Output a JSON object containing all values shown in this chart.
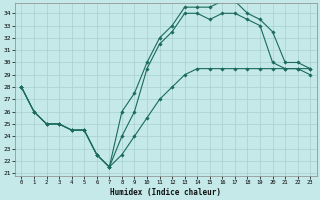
{
  "xlabel": "Humidex (Indice chaleur)",
  "bg_color": "#c5e8e8",
  "grid_color": "#a8d0d0",
  "line_color": "#1a6b5a",
  "xlim": [
    -0.5,
    23.5
  ],
  "ylim": [
    20.8,
    34.8
  ],
  "xticks": [
    0,
    1,
    2,
    3,
    4,
    5,
    6,
    7,
    8,
    9,
    10,
    11,
    12,
    13,
    14,
    15,
    16,
    17,
    18,
    19,
    20,
    21,
    22,
    23
  ],
  "yticks": [
    21,
    22,
    23,
    24,
    25,
    26,
    27,
    28,
    29,
    30,
    31,
    32,
    33,
    34
  ],
  "line1_x": [
    0,
    1,
    2,
    3,
    4,
    5,
    6,
    7,
    8,
    9,
    10,
    11,
    12,
    13,
    14,
    15,
    16,
    17,
    18,
    19,
    20,
    21,
    22,
    23
  ],
  "line1_y": [
    28.0,
    26.0,
    25.0,
    25.0,
    24.5,
    24.5,
    22.5,
    21.5,
    22.5,
    24.0,
    25.5,
    27.0,
    28.0,
    29.0,
    29.5,
    29.5,
    29.5,
    29.5,
    29.5,
    29.5,
    29.5,
    29.5,
    29.5,
    29.5
  ],
  "line2_x": [
    0,
    1,
    2,
    3,
    4,
    5,
    6,
    7,
    8,
    9,
    10,
    11,
    12,
    13,
    14,
    15,
    16,
    17,
    18,
    19,
    20,
    21,
    22,
    23
  ],
  "line2_y": [
    28.0,
    26.0,
    25.0,
    25.0,
    24.5,
    24.5,
    22.5,
    21.5,
    24.0,
    26.0,
    29.5,
    31.5,
    32.5,
    34.0,
    34.0,
    33.5,
    34.0,
    34.0,
    33.5,
    33.0,
    30.0,
    29.5,
    29.5,
    29.0
  ],
  "line3_x": [
    0,
    1,
    2,
    3,
    4,
    5,
    6,
    7,
    8,
    9,
    10,
    11,
    12,
    13,
    14,
    15,
    16,
    17,
    18,
    19,
    20,
    21,
    22,
    23
  ],
  "line3_y": [
    28.0,
    26.0,
    25.0,
    25.0,
    24.5,
    24.5,
    22.5,
    21.5,
    26.0,
    27.5,
    30.0,
    32.0,
    33.0,
    34.5,
    34.5,
    34.5,
    35.0,
    35.0,
    34.0,
    33.5,
    32.5,
    30.0,
    30.0,
    29.5
  ]
}
